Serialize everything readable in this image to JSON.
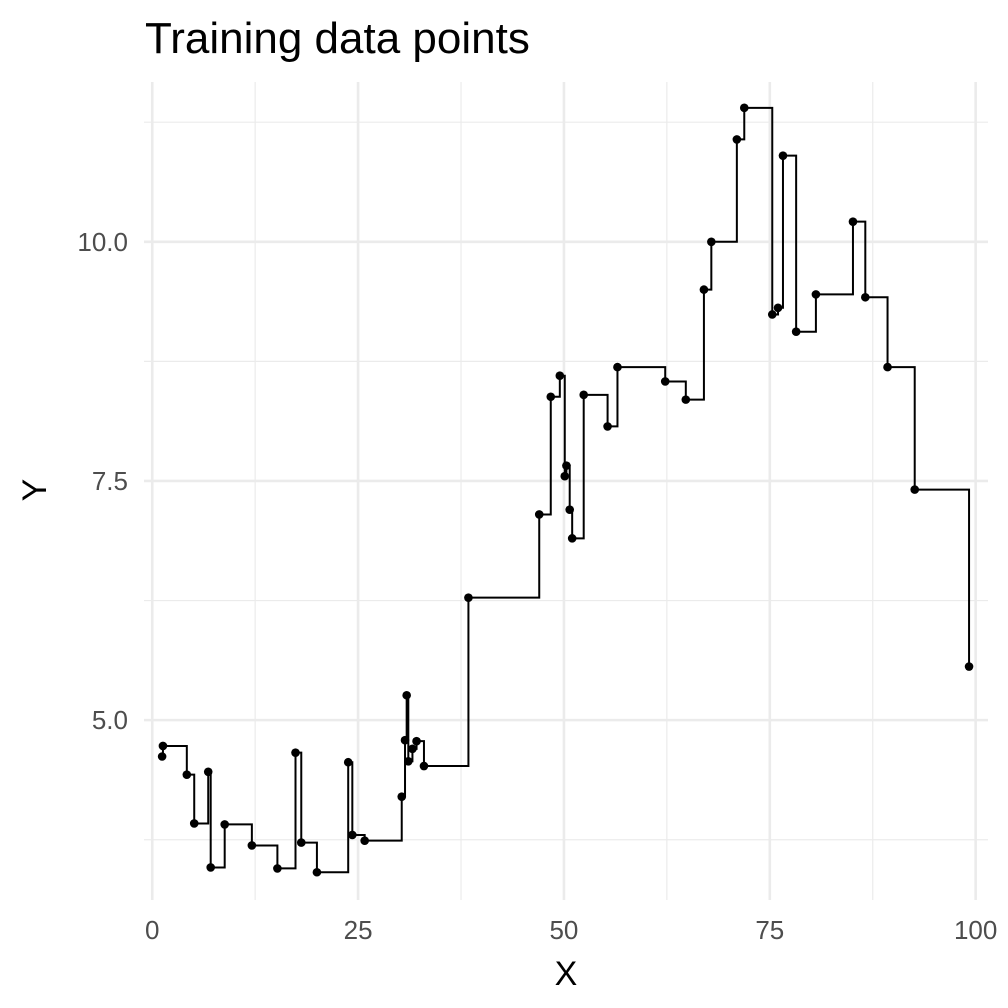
{
  "chart_data": {
    "type": "line",
    "title": "Training data points",
    "xlabel": "X",
    "ylabel": "Y",
    "xlim": [
      -1,
      101.5
    ],
    "ylim": [
      3.12,
      11.67
    ],
    "x_ticks": [
      0,
      25,
      50,
      75,
      100
    ],
    "x_tick_labels": [
      "0",
      "25",
      "50",
      "75",
      "100"
    ],
    "y_ticks": [
      5.0,
      7.5,
      10.0
    ],
    "y_tick_labels": [
      "5.0",
      "7.5",
      "10.0"
    ],
    "y_minor_ticks": [
      3.75,
      6.25,
      8.75,
      11.25
    ],
    "grid": true,
    "line_style": "step",
    "colors": {
      "points": "#000000",
      "line": "#000000",
      "grid": "#ebebeb",
      "tick_text": "#4d4d4d"
    },
    "points": [
      {
        "x": 1.2,
        "y": 4.62
      },
      {
        "x": 1.3,
        "y": 4.73
      },
      {
        "x": 4.2,
        "y": 4.43
      },
      {
        "x": 5.1,
        "y": 3.92
      },
      {
        "x": 6.8,
        "y": 4.46
      },
      {
        "x": 7.1,
        "y": 3.46
      },
      {
        "x": 8.8,
        "y": 3.91
      },
      {
        "x": 12.1,
        "y": 3.69
      },
      {
        "x": 15.2,
        "y": 3.45
      },
      {
        "x": 17.4,
        "y": 4.66
      },
      {
        "x": 18.1,
        "y": 3.72
      },
      {
        "x": 20.0,
        "y": 3.41
      },
      {
        "x": 23.8,
        "y": 4.56
      },
      {
        "x": 24.3,
        "y": 3.8
      },
      {
        "x": 25.8,
        "y": 3.74
      },
      {
        "x": 30.3,
        "y": 4.2
      },
      {
        "x": 30.7,
        "y": 4.79
      },
      {
        "x": 30.9,
        "y": 5.26
      },
      {
        "x": 31.1,
        "y": 4.57
      },
      {
        "x": 31.6,
        "y": 4.7
      },
      {
        "x": 32.1,
        "y": 4.78
      },
      {
        "x": 33.0,
        "y": 4.52
      },
      {
        "x": 38.4,
        "y": 6.28
      },
      {
        "x": 47.0,
        "y": 7.15
      },
      {
        "x": 48.4,
        "y": 8.38
      },
      {
        "x": 49.5,
        "y": 8.6
      },
      {
        "x": 50.1,
        "y": 7.55
      },
      {
        "x": 50.3,
        "y": 7.66
      },
      {
        "x": 50.7,
        "y": 7.2
      },
      {
        "x": 51.0,
        "y": 6.9
      },
      {
        "x": 52.4,
        "y": 8.4
      },
      {
        "x": 55.3,
        "y": 8.07
      },
      {
        "x": 56.5,
        "y": 8.69
      },
      {
        "x": 62.3,
        "y": 8.54
      },
      {
        "x": 64.8,
        "y": 8.35
      },
      {
        "x": 67.0,
        "y": 9.5
      },
      {
        "x": 67.9,
        "y": 10.0
      },
      {
        "x": 71.0,
        "y": 11.07
      },
      {
        "x": 71.9,
        "y": 11.4
      },
      {
        "x": 75.3,
        "y": 9.24
      },
      {
        "x": 76.0,
        "y": 9.31
      },
      {
        "x": 76.6,
        "y": 10.9
      },
      {
        "x": 78.2,
        "y": 9.06
      },
      {
        "x": 80.6,
        "y": 9.45
      },
      {
        "x": 85.1,
        "y": 10.21
      },
      {
        "x": 86.6,
        "y": 9.42
      },
      {
        "x": 89.3,
        "y": 8.69
      },
      {
        "x": 92.6,
        "y": 7.41
      },
      {
        "x": 99.2,
        "y": 5.56
      }
    ]
  }
}
